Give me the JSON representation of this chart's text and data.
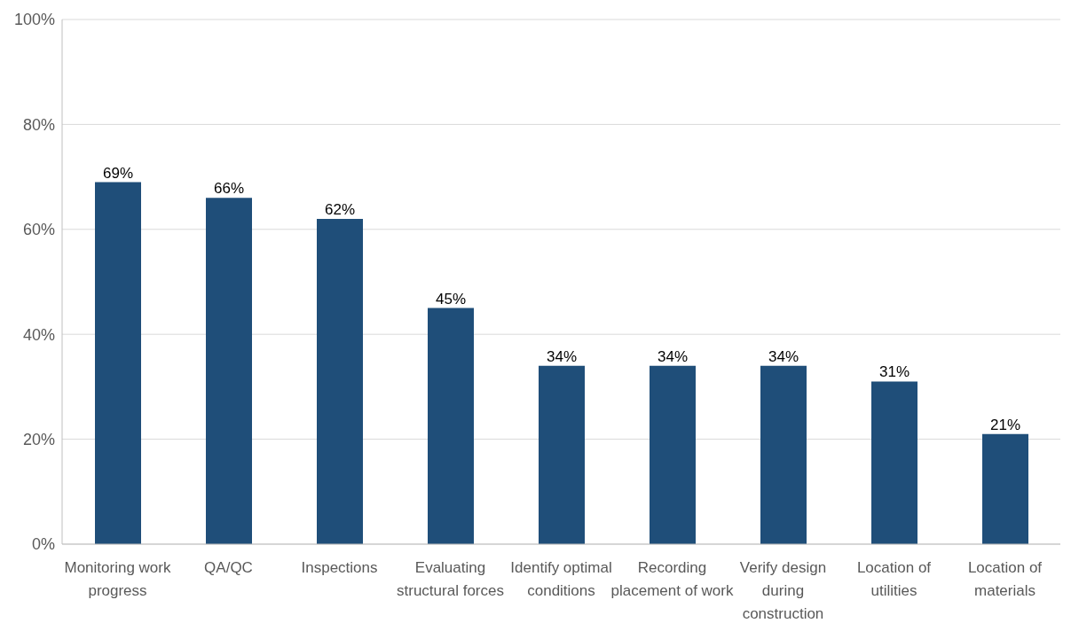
{
  "chart_data": {
    "type": "bar",
    "categories": [
      "Monitoring work progress",
      "QA/QC",
      "Inspections",
      "Evaluating structural forces",
      "Identify optimal conditions",
      "Recording placement of work",
      "Verify design during construction",
      "Location of utilities",
      "Location of materials"
    ],
    "values": [
      69,
      66,
      62,
      45,
      34,
      34,
      34,
      31,
      21
    ],
    "value_labels": [
      "69%",
      "66%",
      "62%",
      "45%",
      "34%",
      "34%",
      "34%",
      "31%",
      "21%"
    ],
    "color": "#1f4e79",
    "ylim": [
      0,
      100
    ],
    "yticks": [
      {
        "value": 0,
        "label": "0%"
      },
      {
        "value": 20,
        "label": "20%"
      },
      {
        "value": 40,
        "label": "40%"
      },
      {
        "value": 60,
        "label": "60%"
      },
      {
        "value": 80,
        "label": "80%"
      },
      {
        "value": 100,
        "label": "100%"
      }
    ],
    "grid": "y",
    "legend": false
  }
}
